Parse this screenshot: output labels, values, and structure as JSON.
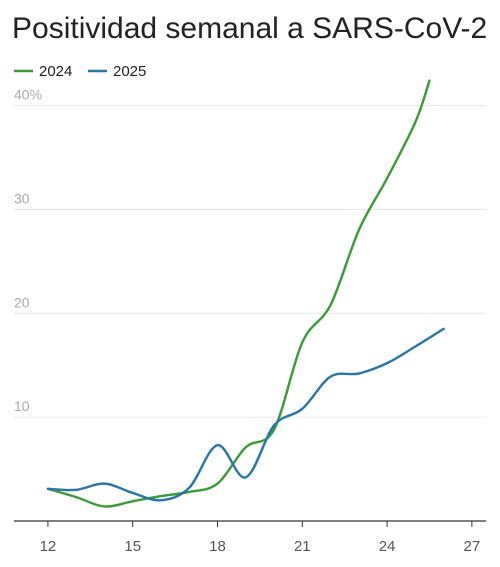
{
  "chart_data": {
    "type": "line",
    "title": "Positividad semanal a SARS-CoV-2",
    "xlabel": "",
    "ylabel": "",
    "xlim": [
      10.8,
      27.5
    ],
    "ylim": [
      0,
      41.5
    ],
    "x_ticks": [
      12,
      15,
      18,
      21,
      24,
      27
    ],
    "y_ticks": [
      {
        "value": 10,
        "label": "10"
      },
      {
        "value": 20,
        "label": "20"
      },
      {
        "value": 30,
        "label": "30"
      },
      {
        "value": 40,
        "label": "40%"
      }
    ],
    "grid": "horizontal",
    "legend_position": "top-left",
    "series": [
      {
        "name": "2024",
        "color": "#3a9a35",
        "points": [
          [
            12,
            3.1
          ],
          [
            13,
            2.3
          ],
          [
            14,
            1.4
          ],
          [
            15,
            1.9
          ],
          [
            16,
            2.4
          ],
          [
            17,
            2.8
          ],
          [
            18,
            3.6
          ],
          [
            19,
            7.1
          ],
          [
            20,
            8.8
          ],
          [
            21,
            17.2
          ],
          [
            22,
            20.8
          ],
          [
            23,
            28.0
          ],
          [
            24,
            33.0
          ],
          [
            25,
            38.4
          ],
          [
            25.5,
            42.4
          ]
        ]
      },
      {
        "name": "2025",
        "color": "#2676a8",
        "points": [
          [
            12,
            3.1
          ],
          [
            13,
            3.0
          ],
          [
            14,
            3.6
          ],
          [
            15,
            2.7
          ],
          [
            16,
            2.0
          ],
          [
            17,
            3.2
          ],
          [
            18,
            7.3
          ],
          [
            19,
            4.2
          ],
          [
            20,
            9.2
          ],
          [
            21,
            10.8
          ],
          [
            22,
            13.9
          ],
          [
            23,
            14.2
          ],
          [
            24,
            15.2
          ],
          [
            25,
            16.8
          ],
          [
            26,
            18.5
          ]
        ]
      }
    ]
  }
}
